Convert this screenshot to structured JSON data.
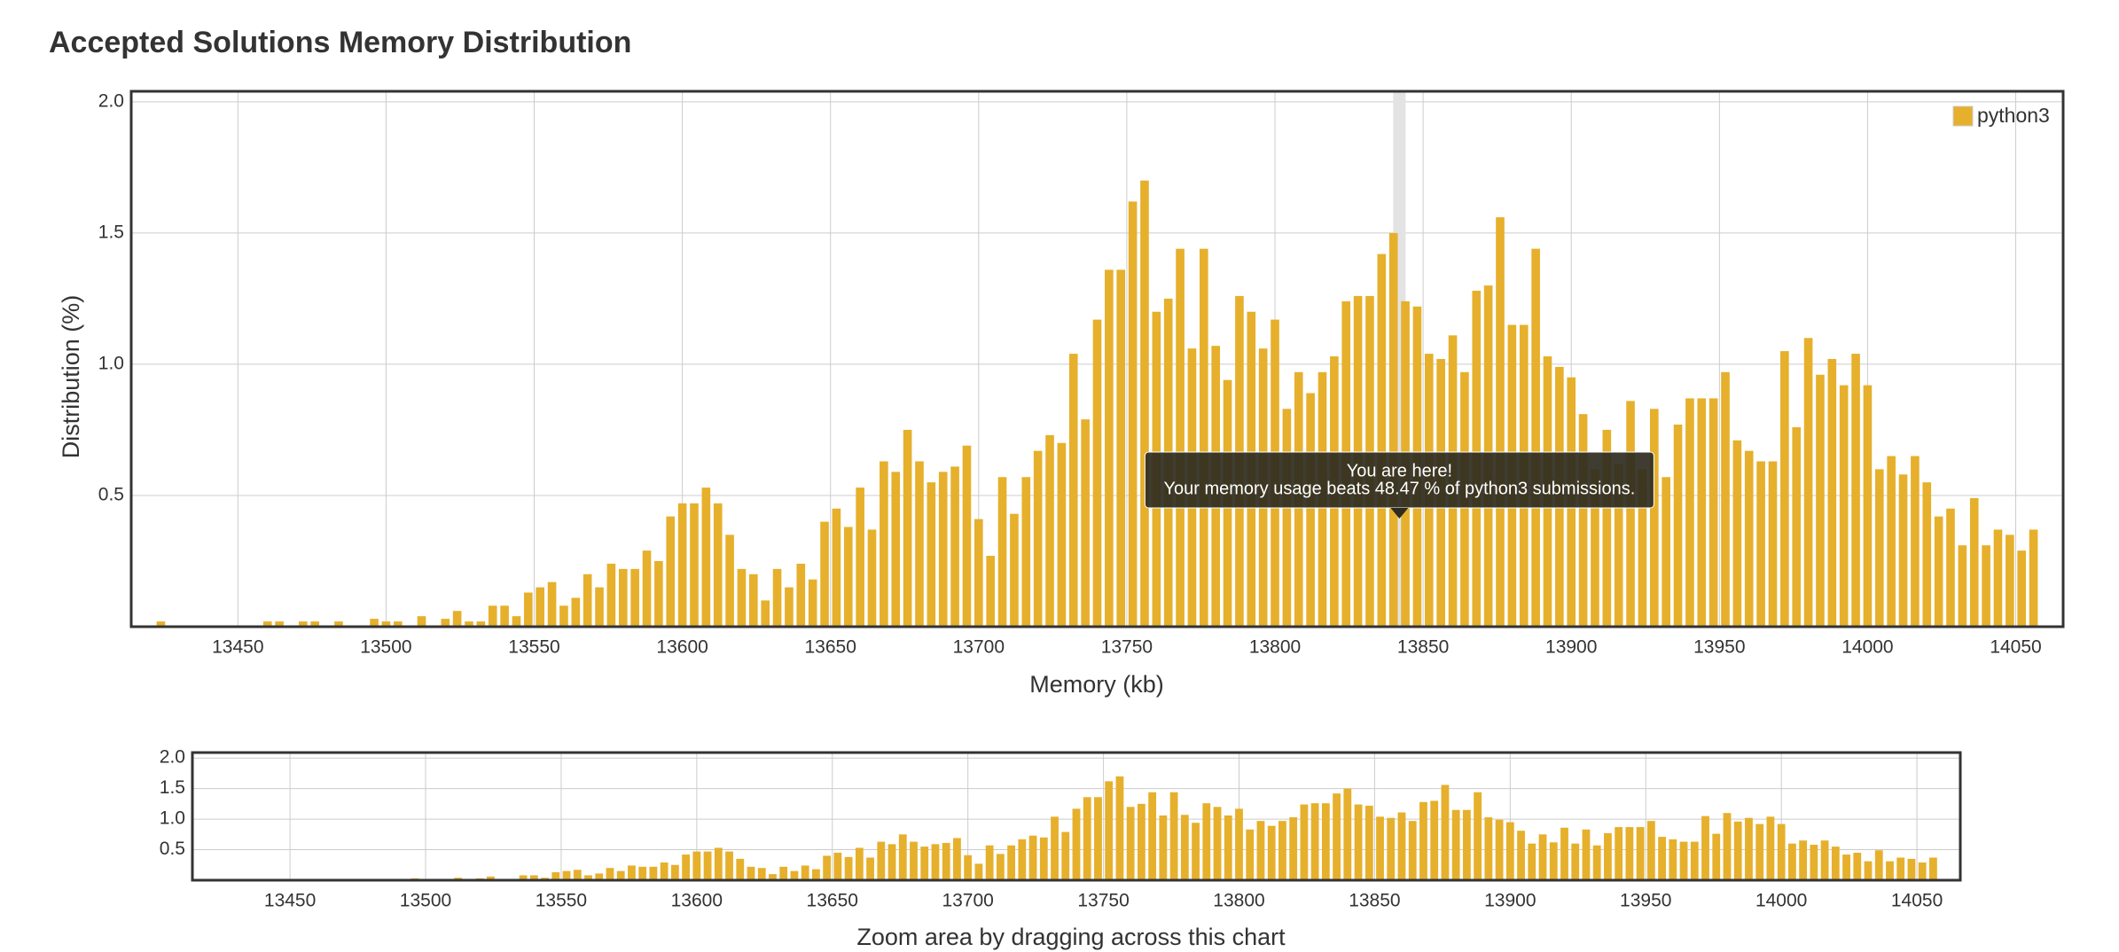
{
  "chart_data": {
    "type": "bar",
    "title": "Accepted Solutions Memory Distribution",
    "x_label": "Memory (kb)",
    "y_label": "Distribution (%)",
    "x": [
      13424,
      13428,
      13432,
      13436,
      13440,
      13444,
      13448,
      13452,
      13456,
      13460,
      13464,
      13468,
      13472,
      13476,
      13480,
      13484,
      13488,
      13492,
      13496,
      13500,
      13504,
      13508,
      13512,
      13516,
      13520,
      13524,
      13528,
      13532,
      13536,
      13540,
      13544,
      13548,
      13552,
      13556,
      13560,
      13564,
      13568,
      13572,
      13576,
      13580,
      13584,
      13588,
      13592,
      13596,
      13600,
      13604,
      13608,
      13612,
      13616,
      13620,
      13624,
      13628,
      13632,
      13636,
      13640,
      13644,
      13648,
      13652,
      13656,
      13660,
      13664,
      13668,
      13672,
      13676,
      13680,
      13684,
      13688,
      13692,
      13696,
      13700,
      13704,
      13708,
      13712,
      13716,
      13720,
      13724,
      13728,
      13732,
      13736,
      13740,
      13744,
      13748,
      13752,
      13756,
      13760,
      13764,
      13768,
      13772,
      13776,
      13780,
      13784,
      13788,
      13792,
      13796,
      13800,
      13804,
      13808,
      13812,
      13816,
      13820,
      13824,
      13828,
      13832,
      13836,
      13840,
      13844,
      13848,
      13852,
      13856,
      13860,
      13864,
      13868,
      13872,
      13876,
      13880,
      13884,
      13888,
      13892,
      13896,
      13900,
      13904,
      13908,
      13912,
      13916,
      13920,
      13924,
      13928,
      13932,
      13936,
      13940,
      13944,
      13948,
      13952,
      13956,
      13960,
      13964,
      13968,
      13972,
      13976,
      13980,
      13984,
      13988,
      13992,
      13996,
      14000,
      14004,
      14008,
      14012,
      14016,
      14020,
      14024,
      14028,
      14032,
      14036,
      14040,
      14044,
      14048,
      14052,
      14056
    ],
    "series": [
      {
        "name": "python3",
        "color": "#e6b02c",
        "values": [
          0.02,
          0,
          0,
          0,
          0,
          0,
          0,
          0,
          0,
          0.02,
          0.02,
          0,
          0.02,
          0.02,
          0,
          0.02,
          0,
          0,
          0.03,
          0.02,
          0.02,
          0,
          0.04,
          0,
          0.03,
          0.06,
          0.02,
          0.02,
          0.08,
          0.08,
          0.04,
          0.13,
          0.15,
          0.17,
          0.08,
          0.11,
          0.2,
          0.15,
          0.24,
          0.22,
          0.22,
          0.29,
          0.25,
          0.42,
          0.47,
          0.47,
          0.53,
          0.47,
          0.35,
          0.22,
          0.2,
          0.1,
          0.22,
          0.15,
          0.24,
          0.18,
          0.4,
          0.45,
          0.38,
          0.53,
          0.37,
          0.63,
          0.59,
          0.75,
          0.63,
          0.55,
          0.59,
          0.61,
          0.69,
          0.41,
          0.27,
          0.57,
          0.43,
          0.57,
          0.67,
          0.73,
          0.7,
          1.04,
          0.79,
          1.17,
          1.36,
          1.36,
          1.62,
          1.7,
          1.2,
          1.25,
          1.44,
          1.06,
          1.44,
          1.07,
          0.94,
          1.26,
          1.2,
          1.06,
          1.17,
          0.83,
          0.97,
          0.89,
          0.97,
          1.03,
          1.24,
          1.26,
          1.26,
          1.42,
          1.5,
          1.24,
          1.22,
          1.04,
          1.02,
          1.11,
          0.97,
          1.28,
          1.3,
          1.56,
          1.15,
          1.15,
          1.44,
          1.03,
          0.99,
          0.95,
          0.81,
          0.6,
          0.75,
          0.62,
          0.86,
          0.6,
          0.83,
          0.57,
          0.77,
          0.87,
          0.87,
          0.87,
          0.97,
          0.71,
          0.67,
          0.63,
          0.63,
          1.05,
          0.76,
          1.1,
          0.96,
          1.02,
          0.92,
          1.04,
          0.92,
          0.6,
          0.65,
          0.58,
          0.65,
          0.55,
          0.42,
          0.45,
          0.31,
          0.49,
          0.31,
          0.37,
          0.35,
          0.29,
          0.37
        ]
      }
    ],
    "xlim": [
      13414,
      14066
    ],
    "xticks": [
      13450,
      13500,
      13550,
      13600,
      13650,
      13700,
      13750,
      13800,
      13850,
      13900,
      13950,
      14000,
      14050
    ],
    "ylim": [
      0,
      2.04
    ],
    "yticks": [
      0.5,
      {
        "value": 1,
        "label": "1.0"
      },
      1.5,
      {
        "value": 2,
        "label": "2.0"
      }
    ],
    "grid": true,
    "legend": "top-right",
    "highlight_x": 13842,
    "tooltip": [
      "You are here!",
      "Your memory usage beats 48.47 % of python3 submissions."
    ],
    "navigator": {
      "ylim": [
        0,
        2.09
      ],
      "yticks": [
        0.5,
        {
          "value": 1,
          "label": "1.0"
        },
        1.5,
        {
          "value": 2,
          "label": "2.0"
        }
      ],
      "caption": "Zoom area by dragging across this chart"
    }
  }
}
